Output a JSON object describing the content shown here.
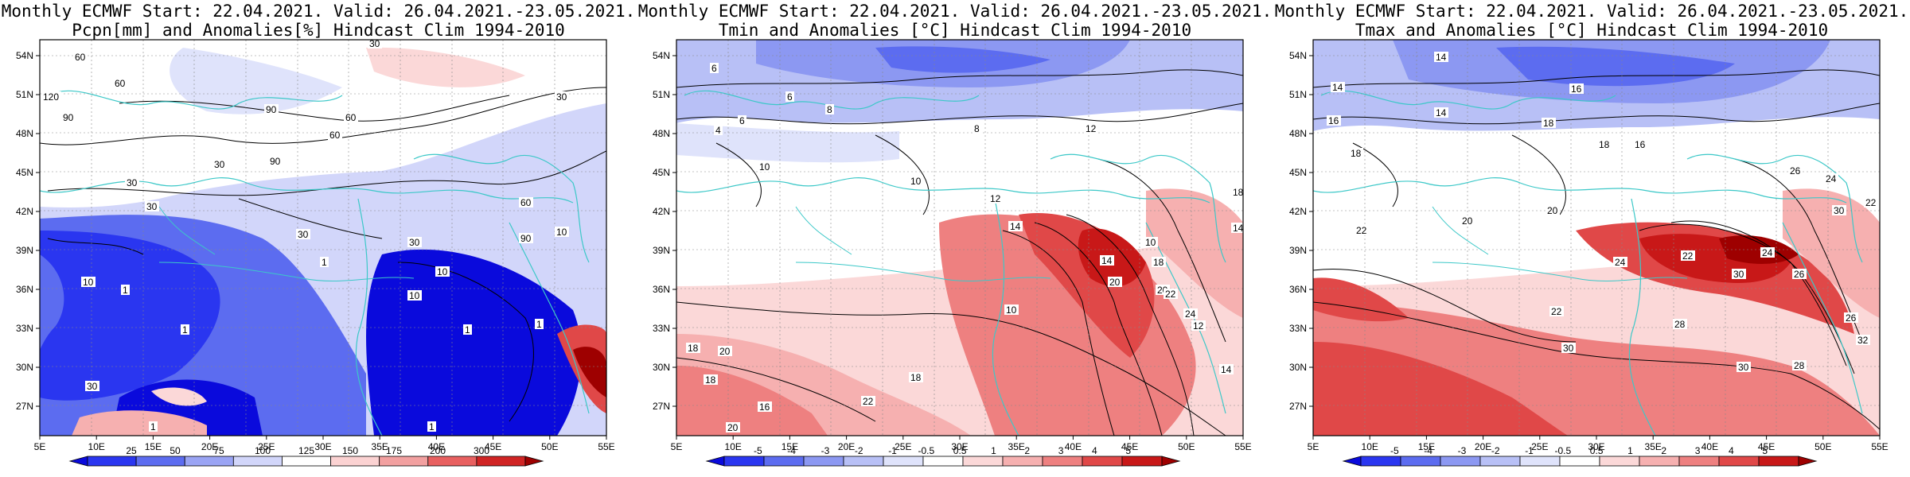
{
  "panels": [
    {
      "title_line1": "Monthly ECMWF Start: 22.04.2021. Valid: 26.04.2021.-23.05.2021.",
      "title_line2": "Pcpn[mm] and Anomalies[%] Hindcast Clim 1994-2010",
      "colorbar": {
        "labels": [
          "25",
          "50",
          "75",
          "100",
          "125",
          "150",
          "175",
          "200",
          "300"
        ],
        "colors": [
          "#0a0adc",
          "#2a36f0",
          "#5c6cf0",
          "#9aa4f4",
          "#d2d6fa",
          "#ffffff",
          "#fbd2d2",
          "#f2a0a0",
          "#e86060",
          "#d02424",
          "#9e0000"
        ]
      },
      "contour_labels": [
        "60",
        "60",
        "120",
        "90",
        "90",
        "30",
        "30",
        "60",
        "30",
        "90",
        "60",
        "30",
        "30",
        "30",
        "30",
        "90",
        "10",
        "10",
        "10",
        "1",
        "1",
        "1",
        "10",
        "1",
        "1",
        "1",
        "1",
        "30",
        "60"
      ]
    },
    {
      "title_line1": "Monthly ECMWF Start: 22.04.2021. Valid: 26.04.2021.-23.05.2021.",
      "title_line2": "Tmin and Anomalies [°C] Hindcast Clim 1994-2010",
      "colorbar": {
        "labels": [
          "-5",
          "-4",
          "-3",
          "-2",
          "-1",
          "-0.5",
          "0.5",
          "1",
          "2",
          "3",
          "4",
          "5"
        ],
        "colors": [
          "#0a0adc",
          "#2a36f0",
          "#5c6cf0",
          "#8c98f2",
          "#b8c0f6",
          "#dfe3fb",
          "#ffffff",
          "#fbd8d8",
          "#f6b0b0",
          "#ee8080",
          "#e04848",
          "#c81818",
          "#9e0000"
        ]
      },
      "contour_labels": [
        "6",
        "6",
        "8",
        "6",
        "4",
        "8",
        "12",
        "10",
        "10",
        "12",
        "14",
        "10",
        "14",
        "18",
        "20",
        "22",
        "24",
        "10",
        "18",
        "20",
        "18",
        "16",
        "20",
        "18",
        "22",
        "20",
        "18",
        "14",
        "12",
        "14"
      ]
    },
    {
      "title_line1": "Monthly ECMWF Start: 22.04.2021. Valid: 26.04.2021.-23.05.2021.",
      "title_line2": "Tmax and Anomalies [°C] Hindcast Clim 1994-2010",
      "colorbar": {
        "labels": [
          "-5",
          "-4",
          "-3",
          "-2",
          "-1",
          "-0.5",
          "0.5",
          "1",
          "2",
          "3",
          "4",
          "5"
        ],
        "colors": [
          "#0a0adc",
          "#2a36f0",
          "#5c6cf0",
          "#8c98f2",
          "#b8c0f6",
          "#dfe3fb",
          "#ffffff",
          "#fbd8d8",
          "#f6b0b0",
          "#ee8080",
          "#e04848",
          "#c81818",
          "#9e0000"
        ]
      },
      "contour_labels": [
        "14",
        "14",
        "16",
        "18",
        "16",
        "18",
        "22",
        "20",
        "24",
        "22",
        "24",
        "30",
        "26",
        "22",
        "28",
        "30",
        "30",
        "26",
        "28",
        "32",
        "14",
        "16",
        "18",
        "20",
        "22",
        "30",
        "24",
        "26"
      ]
    }
  ],
  "map": {
    "lon_labels": [
      "5E",
      "10E",
      "15E",
      "20E",
      "25E",
      "30E",
      "35E",
      "40E",
      "45E",
      "50E",
      "55E"
    ],
    "lat_labels": [
      "54N",
      "51N",
      "48N",
      "45N",
      "42N",
      "39N",
      "36N",
      "33N",
      "30N",
      "27N"
    ]
  }
}
